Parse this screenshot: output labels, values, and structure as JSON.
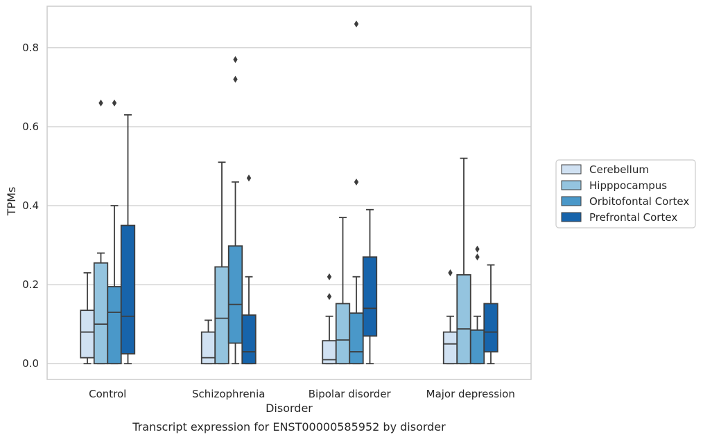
{
  "caption": "Transcript expression for ENST00000585952 by disorder",
  "chart_data": {
    "type": "box",
    "xlabel": "Disorder",
    "ylabel": "TPMs",
    "ylim": [
      -0.04,
      0.905
    ],
    "yticks": [
      0.0,
      0.2,
      0.4,
      0.6,
      0.8
    ],
    "ytick_labels": [
      "0.0",
      "0.2",
      "0.4",
      "0.6",
      "0.8"
    ],
    "grid": "horizontal",
    "legend_position": "right",
    "categories": [
      "Control",
      "Schizophrenia",
      "Bipolar disorder",
      "Major depression"
    ],
    "series": [
      {
        "name": "Cerebellum",
        "color": "#d0e1f2",
        "boxes": [
          {
            "whislo": 0.0,
            "q1": 0.015,
            "med": 0.08,
            "q3": 0.135,
            "whishi": 0.23,
            "fliers": []
          },
          {
            "whislo": 0.0,
            "q1": 0.0,
            "med": 0.015,
            "q3": 0.08,
            "whishi": 0.11,
            "fliers": []
          },
          {
            "whislo": 0.0,
            "q1": 0.0,
            "med": 0.01,
            "q3": 0.058,
            "whishi": 0.12,
            "fliers": [
              0.22,
              0.17
            ]
          },
          {
            "whislo": 0.0,
            "q1": 0.0,
            "med": 0.05,
            "q3": 0.08,
            "whishi": 0.12,
            "fliers": [
              0.23
            ]
          }
        ]
      },
      {
        "name": "Hipppocampus",
        "color": "#94c4df",
        "boxes": [
          {
            "whislo": 0.0,
            "q1": 0.0,
            "med": 0.1,
            "q3": 0.255,
            "whishi": 0.28,
            "fliers": [
              0.66
            ]
          },
          {
            "whislo": 0.0,
            "q1": 0.0,
            "med": 0.115,
            "q3": 0.245,
            "whishi": 0.51,
            "fliers": []
          },
          {
            "whislo": 0.0,
            "q1": 0.0,
            "med": 0.06,
            "q3": 0.152,
            "whishi": 0.37,
            "fliers": []
          },
          {
            "whislo": 0.0,
            "q1": 0.0,
            "med": 0.088,
            "q3": 0.225,
            "whishi": 0.52,
            "fliers": []
          }
        ]
      },
      {
        "name": "Orbitofontal Cortex",
        "color": "#4a98c9",
        "boxes": [
          {
            "whislo": 0.0,
            "q1": 0.0,
            "med": 0.13,
            "q3": 0.195,
            "whishi": 0.4,
            "fliers": [
              0.66
            ]
          },
          {
            "whislo": 0.0,
            "q1": 0.052,
            "med": 0.15,
            "q3": 0.298,
            "whishi": 0.46,
            "fliers": [
              0.77,
              0.72
            ]
          },
          {
            "whislo": 0.0,
            "q1": 0.0,
            "med": 0.03,
            "q3": 0.128,
            "whishi": 0.22,
            "fliers": [
              0.86,
              0.46
            ]
          },
          {
            "whislo": 0.0,
            "q1": 0.0,
            "med": 0.085,
            "q3": 0.085,
            "whishi": 0.12,
            "fliers": [
              0.29,
              0.27
            ]
          }
        ]
      },
      {
        "name": "Prefrontal Cortex",
        "color": "#1764ab",
        "boxes": [
          {
            "whislo": 0.0,
            "q1": 0.025,
            "med": 0.12,
            "q3": 0.35,
            "whishi": 0.63,
            "fliers": []
          },
          {
            "whislo": 0.0,
            "q1": 0.0,
            "med": 0.03,
            "q3": 0.123,
            "whishi": 0.22,
            "fliers": [
              0.47
            ]
          },
          {
            "whislo": 0.0,
            "q1": 0.07,
            "med": 0.14,
            "q3": 0.27,
            "whishi": 0.39,
            "fliers": []
          },
          {
            "whislo": 0.0,
            "q1": 0.03,
            "med": 0.08,
            "q3": 0.152,
            "whishi": 0.25,
            "fliers": []
          }
        ]
      }
    ]
  }
}
